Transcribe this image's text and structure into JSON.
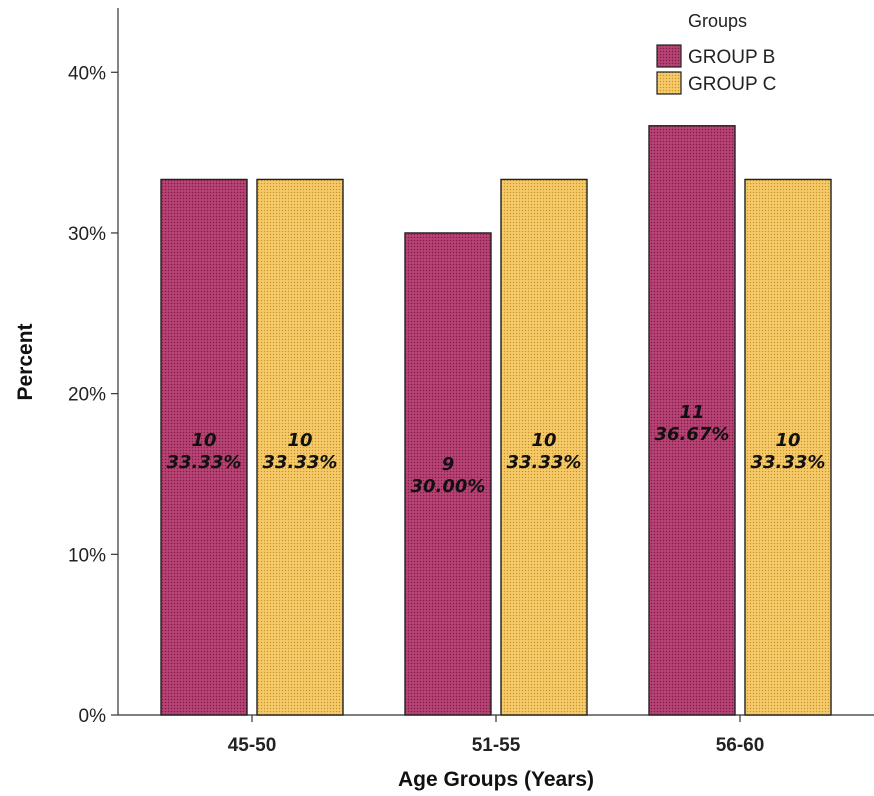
{
  "chart_data": {
    "type": "bar",
    "xlabel": "Age Groups (Years)",
    "ylabel": "Percent",
    "ylim": [
      0,
      44
    ],
    "yticks": [
      0,
      10,
      20,
      30,
      40
    ],
    "ytick_labels": [
      "0%",
      "10%",
      "20%",
      "30%",
      "40%"
    ],
    "grid": false,
    "legend": {
      "title": "Groups",
      "position": "top-right"
    },
    "categories": [
      "45-50",
      "51-55",
      "56-60"
    ],
    "series": [
      {
        "name": "GROUP B",
        "color": "#B03A6C",
        "values": [
          33.33,
          30.0,
          36.67
        ],
        "counts": [
          "10",
          "9",
          "11"
        ],
        "percent_labels": [
          "33.33%",
          "30.00%",
          "36.67%"
        ]
      },
      {
        "name": "GROUP C",
        "color": "#F2C45E",
        "values": [
          33.33,
          33.33,
          33.33
        ],
        "counts": [
          "10",
          "10",
          "10"
        ],
        "percent_labels": [
          "33.33%",
          "33.33%",
          "33.33%"
        ]
      }
    ]
  }
}
